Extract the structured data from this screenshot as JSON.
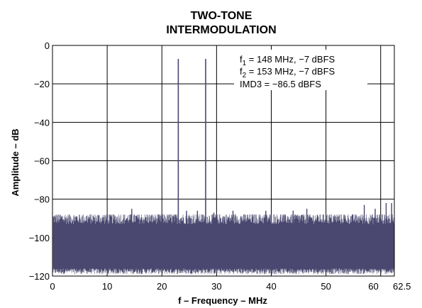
{
  "chart_data": {
    "type": "line",
    "title_line1": "TWO-TONE",
    "title_line2": "INTERMODULATION",
    "xlabel": "f – Frequency – MHz",
    "ylabel": "Amplitude – dB",
    "xlim": [
      0,
      62.5
    ],
    "ylim": [
      -120,
      0
    ],
    "x_ticks": [
      0,
      10,
      20,
      30,
      40,
      50,
      60,
      62.5
    ],
    "x_tick_labels": [
      "0",
      "10",
      "20",
      "30",
      "40",
      "50",
      "60",
      "62.5"
    ],
    "y_ticks": [
      0,
      -20,
      -40,
      -60,
      -80,
      -100,
      -120
    ],
    "y_tick_labels": [
      "0",
      "−20",
      "−40",
      "−60",
      "−80",
      "−100",
      "−120"
    ],
    "grid": true,
    "tones": [
      {
        "x": 23.0,
        "y": -7
      },
      {
        "x": 28.0,
        "y": -7
      }
    ],
    "spurs": [
      {
        "x": 14.5,
        "y": -85
      },
      {
        "x": 24.5,
        "y": -86
      },
      {
        "x": 26.5,
        "y": -86
      },
      {
        "x": 29.5,
        "y": -87
      },
      {
        "x": 33.0,
        "y": -86
      },
      {
        "x": 39.0,
        "y": -86
      },
      {
        "x": 44.0,
        "y": -86
      },
      {
        "x": 46.5,
        "y": -85
      },
      {
        "x": 57.0,
        "y": -83
      },
      {
        "x": 59.0,
        "y": -85
      },
      {
        "x": 61.0,
        "y": -82
      },
      {
        "x": 62.0,
        "y": -82
      }
    ],
    "noise_floor": {
      "mean": -103,
      "top": -91,
      "bottom": -118
    },
    "series_color": "#4a4870",
    "annotations": {
      "f1_prefix": "f",
      "f1_sub": "1",
      "f1_text": " = 148 MHz, −7 dBFS",
      "f2_prefix": "f",
      "f2_sub": "2",
      "f2_text": " = 153 MHz, −7 dBFS",
      "imd3": "IMD3 = −86.5 dBFS"
    }
  }
}
